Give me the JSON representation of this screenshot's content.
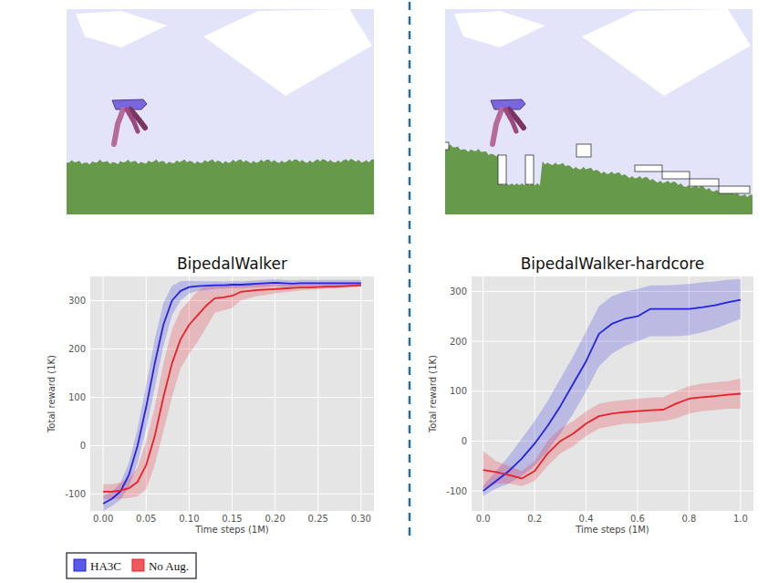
{
  "chart_data": [
    {
      "type": "line",
      "title": "BipedalWalker",
      "xlabel": "Time steps (1M)",
      "ylabel": "Total reward (1K)",
      "x": [
        0,
        0.01,
        0.02,
        0.03,
        0.04,
        0.05,
        0.06,
        0.07,
        0.08,
        0.09,
        0.1,
        0.11,
        0.12,
        0.13,
        0.14,
        0.15,
        0.16,
        0.17,
        0.18,
        0.19,
        0.2,
        0.21,
        0.22,
        0.23,
        0.24,
        0.25,
        0.26,
        0.27,
        0.28,
        0.29,
        0.3
      ],
      "series": [
        {
          "name": "HA3C",
          "color": "#2323e0",
          "values": [
            -120,
            -110,
            -95,
            -60,
            0,
            80,
            170,
            250,
            300,
            320,
            328,
            330,
            331,
            332,
            332,
            333,
            333,
            334,
            335,
            336,
            337,
            336,
            335,
            336,
            336,
            336,
            336,
            336,
            336,
            336,
            336
          ],
          "lower": [
            -135,
            -125,
            -112,
            -85,
            -35,
            35,
            120,
            205,
            270,
            300,
            315,
            320,
            322,
            324,
            325,
            326,
            326,
            327,
            328,
            329,
            330,
            329,
            328,
            329,
            329,
            329,
            329,
            329,
            329,
            329,
            329
          ],
          "upper": [
            -105,
            -95,
            -78,
            -35,
            35,
            125,
            220,
            295,
            330,
            340,
            341,
            340,
            340,
            340,
            339,
            340,
            340,
            341,
            342,
            343,
            344,
            343,
            342,
            343,
            343,
            343,
            343,
            343,
            343,
            343,
            343
          ]
        },
        {
          "name": "No Aug.",
          "color": "#e8202a",
          "values": [
            -95,
            -95,
            -93,
            -88,
            -75,
            -40,
            20,
            100,
            170,
            220,
            250,
            270,
            290,
            305,
            307,
            310,
            318,
            320,
            322,
            323,
            324,
            325,
            326,
            327,
            327,
            328,
            329,
            329,
            330,
            331,
            332
          ],
          "lower": [
            -110,
            -110,
            -110,
            -108,
            -105,
            -90,
            -40,
            30,
            100,
            160,
            190,
            215,
            245,
            275,
            280,
            285,
            300,
            305,
            310,
            312,
            315,
            317,
            319,
            321,
            322,
            323,
            325,
            325,
            327,
            328,
            329
          ],
          "upper": [
            -80,
            -80,
            -76,
            -68,
            -45,
            10,
            80,
            170,
            240,
            280,
            300,
            320,
            330,
            333,
            333,
            333,
            334,
            334,
            334,
            334,
            334,
            334,
            334,
            334,
            334,
            334,
            335,
            335,
            335,
            336,
            336
          ]
        }
      ],
      "xlim": [
        -0.015,
        0.315
      ],
      "ylim": [
        -135,
        350
      ],
      "xticks": [
        {
          "value": 0,
          "label": "0.00"
        },
        {
          "value": 0.05,
          "label": "0.05"
        },
        {
          "value": 0.1,
          "label": "0.10"
        },
        {
          "value": 0.15,
          "label": "0.15"
        },
        {
          "value": 0.2,
          "label": "0.20"
        },
        {
          "value": 0.25,
          "label": "0.25"
        },
        {
          "value": 0.3,
          "label": "0.30"
        }
      ],
      "yticks": [
        -100,
        0,
        100,
        200,
        300
      ],
      "grid": true,
      "legend": "bottom left"
    },
    {
      "type": "line",
      "title": "BipedalWalker-hardcore",
      "xlabel": "Time steps (1M)",
      "ylabel": "Total reward (1K)",
      "x": [
        0,
        0.05,
        0.1,
        0.15,
        0.2,
        0.25,
        0.3,
        0.35,
        0.4,
        0.45,
        0.5,
        0.55,
        0.6,
        0.65,
        0.7,
        0.75,
        0.8,
        0.85,
        0.9,
        0.95,
        1.0
      ],
      "series": [
        {
          "color": "#2323e0",
          "values": [
            -100,
            -80,
            -60,
            -35,
            -5,
            30,
            70,
            115,
            160,
            215,
            235,
            245,
            250,
            265,
            265,
            265,
            265,
            268,
            272,
            278,
            283
          ],
          "lower": [
            -110,
            -95,
            -85,
            -70,
            -50,
            -20,
            15,
            55,
            100,
            150,
            175,
            190,
            200,
            210,
            210,
            210,
            212,
            218,
            225,
            235,
            245
          ],
          "upper": [
            -90,
            -60,
            -30,
            5,
            40,
            80,
            125,
            170,
            220,
            270,
            290,
            300,
            305,
            312,
            312,
            313,
            315,
            318,
            320,
            323,
            325
          ]
        },
        {
          "color": "#e8202a",
          "values": [
            -58,
            -62,
            -68,
            -75,
            -60,
            -25,
            0,
            15,
            35,
            50,
            55,
            58,
            60,
            62,
            63,
            75,
            85,
            88,
            90,
            93,
            95
          ],
          "lower": [
            -95,
            -85,
            -85,
            -90,
            -80,
            -50,
            -25,
            -10,
            10,
            25,
            30,
            35,
            35,
            38,
            40,
            45,
            55,
            60,
            62,
            65,
            65
          ],
          "upper": [
            -20,
            -40,
            -50,
            -60,
            -40,
            0,
            25,
            40,
            60,
            75,
            80,
            82,
            85,
            87,
            88,
            100,
            110,
            115,
            118,
            120,
            125
          ]
        }
      ],
      "xlim": [
        -0.045,
        1.05
      ],
      "ylim": [
        -140,
        330
      ],
      "xticks": [
        {
          "value": 0,
          "label": "0.0"
        },
        {
          "value": 0.2,
          "label": "0.2"
        },
        {
          "value": 0.4,
          "label": "0.4"
        },
        {
          "value": 0.6,
          "label": "0.6"
        },
        {
          "value": 0.8,
          "label": "0.8"
        },
        {
          "value": 1,
          "label": "1.0"
        }
      ],
      "yticks": [
        -100,
        0,
        100,
        200,
        300
      ],
      "grid": true
    }
  ]
}
